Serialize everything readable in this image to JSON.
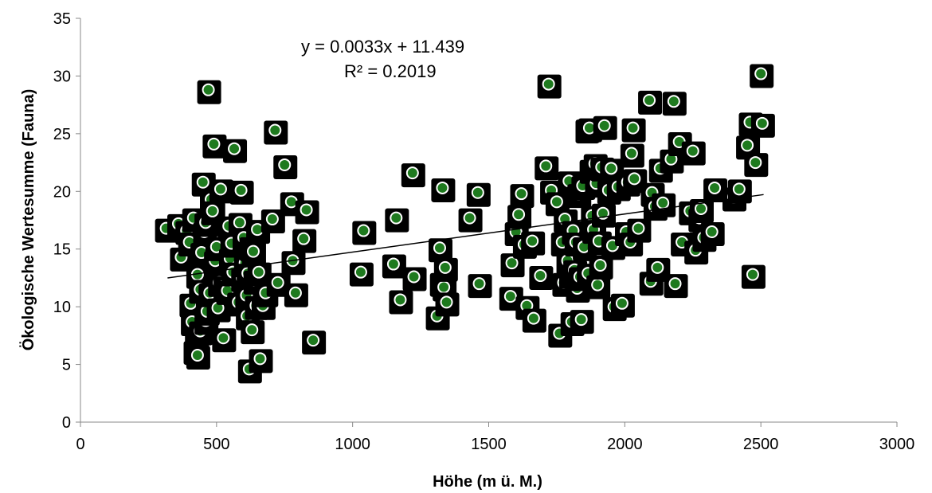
{
  "chart_data": {
    "type": "scatter",
    "title": "",
    "xlabel": "Höhe (m ü. M.)",
    "ylabel": "Ökologische Wertesumme (Fauna)",
    "xlim": [
      0,
      3000
    ],
    "ylim": [
      0,
      35
    ],
    "xticks": [
      0,
      500,
      1000,
      1500,
      2000,
      2500,
      3000
    ],
    "yticks": [
      0,
      5,
      10,
      15,
      20,
      25,
      30,
      35
    ],
    "grid": false,
    "legend": "none",
    "marker": {
      "shape": "circle",
      "fill": "#1e7a1e",
      "edge": "#ffffff",
      "shadow": "#000000"
    },
    "trendline": {
      "type": "linear",
      "slope": 0.0033,
      "intercept": 11.439,
      "x_range": [
        320,
        2510
      ],
      "equation": "y = 0.0033x + 11.439",
      "r_squared": "R² = 0.2019"
    },
    "points": [
      [
        315,
        16.8
      ],
      [
        360,
        17.2
      ],
      [
        370,
        14.3
      ],
      [
        390,
        16.6
      ],
      [
        400,
        15.6
      ],
      [
        405,
        10.3
      ],
      [
        410,
        8.7
      ],
      [
        415,
        17.7
      ],
      [
        420,
        6.2
      ],
      [
        425,
        7.3
      ],
      [
        430,
        12.8
      ],
      [
        430,
        5.8
      ],
      [
        440,
        7.9
      ],
      [
        440,
        11.5
      ],
      [
        445,
        14.7
      ],
      [
        450,
        20.8
      ],
      [
        455,
        16.5
      ],
      [
        460,
        8.8
      ],
      [
        460,
        17.3
      ],
      [
        465,
        9.6
      ],
      [
        470,
        28.8
      ],
      [
        475,
        11.2
      ],
      [
        480,
        19.3
      ],
      [
        485,
        18.3
      ],
      [
        490,
        24.1
      ],
      [
        495,
        14.0
      ],
      [
        500,
        15.2
      ],
      [
        505,
        9.9
      ],
      [
        510,
        12.1
      ],
      [
        515,
        20.2
      ],
      [
        525,
        7.3
      ],
      [
        530,
        11.8
      ],
      [
        540,
        11.4
      ],
      [
        545,
        17.0
      ],
      [
        550,
        14.2
      ],
      [
        555,
        15.5
      ],
      [
        560,
        13.0
      ],
      [
        565,
        23.7
      ],
      [
        580,
        10.4
      ],
      [
        585,
        17.3
      ],
      [
        590,
        20.1
      ],
      [
        595,
        12.5
      ],
      [
        600,
        16.0
      ],
      [
        605,
        13.8
      ],
      [
        610,
        11.0
      ],
      [
        612,
        9.2
      ],
      [
        615,
        12.9
      ],
      [
        620,
        4.6
      ],
      [
        625,
        15.2
      ],
      [
        630,
        8.0
      ],
      [
        635,
        14.8
      ],
      [
        640,
        12.3
      ],
      [
        645,
        10.1
      ],
      [
        650,
        16.7
      ],
      [
        655,
        13.0
      ],
      [
        660,
        5.5
      ],
      [
        670,
        10.1
      ],
      [
        680,
        11.2
      ],
      [
        705,
        17.6
      ],
      [
        715,
        25.3
      ],
      [
        725,
        12.1
      ],
      [
        750,
        22.3
      ],
      [
        775,
        19.1
      ],
      [
        780,
        14.0
      ],
      [
        790,
        11.2
      ],
      [
        820,
        15.9
      ],
      [
        830,
        18.4
      ],
      [
        855,
        7.1
      ],
      [
        1030,
        13.0
      ],
      [
        1040,
        16.6
      ],
      [
        1150,
        13.7
      ],
      [
        1160,
        17.7
      ],
      [
        1175,
        10.6
      ],
      [
        1220,
        21.6
      ],
      [
        1225,
        12.6
      ],
      [
        1310,
        9.2
      ],
      [
        1320,
        15.1
      ],
      [
        1325,
        12.1
      ],
      [
        1330,
        20.3
      ],
      [
        1335,
        11.7
      ],
      [
        1340,
        13.4
      ],
      [
        1345,
        10.4
      ],
      [
        1430,
        17.7
      ],
      [
        1460,
        19.9
      ],
      [
        1465,
        12.0
      ],
      [
        1580,
        10.9
      ],
      [
        1585,
        13.8
      ],
      [
        1600,
        16.5
      ],
      [
        1610,
        18.0
      ],
      [
        1620,
        19.8
      ],
      [
        1630,
        15.4
      ],
      [
        1640,
        10.1
      ],
      [
        1660,
        15.7
      ],
      [
        1665,
        9.0
      ],
      [
        1690,
        12.7
      ],
      [
        1710,
        22.2
      ],
      [
        1720,
        29.3
      ],
      [
        1730,
        20.1
      ],
      [
        1750,
        19.1
      ],
      [
        1760,
        7.7
      ],
      [
        1770,
        15.6
      ],
      [
        1775,
        12.1
      ],
      [
        1780,
        17.6
      ],
      [
        1790,
        14.0
      ],
      [
        1795,
        20.9
      ],
      [
        1800,
        12.8
      ],
      [
        1805,
        8.7
      ],
      [
        1810,
        16.6
      ],
      [
        1815,
        13.2
      ],
      [
        1820,
        15.6
      ],
      [
        1825,
        11.6
      ],
      [
        1830,
        19.8
      ],
      [
        1835,
        12.6
      ],
      [
        1840,
        8.9
      ],
      [
        1845,
        20.5
      ],
      [
        1850,
        15.2
      ],
      [
        1860,
        25.4
      ],
      [
        1865,
        12.9
      ],
      [
        1870,
        25.5
      ],
      [
        1875,
        21.9
      ],
      [
        1880,
        17.9
      ],
      [
        1885,
        16.7
      ],
      [
        1890,
        22.4
      ],
      [
        1895,
        20.7
      ],
      [
        1900,
        11.9
      ],
      [
        1905,
        15.7
      ],
      [
        1910,
        13.6
      ],
      [
        1915,
        22.1
      ],
      [
        1920,
        18.1
      ],
      [
        1925,
        25.7
      ],
      [
        1940,
        20.1
      ],
      [
        1950,
        22.0
      ],
      [
        1955,
        15.3
      ],
      [
        1960,
        10.0
      ],
      [
        1975,
        20.4
      ],
      [
        1990,
        10.3
      ],
      [
        2005,
        16.5
      ],
      [
        2010,
        20.8
      ],
      [
        2020,
        15.6
      ],
      [
        2025,
        23.3
      ],
      [
        2030,
        25.5
      ],
      [
        2035,
        21.1
      ],
      [
        2050,
        16.8
      ],
      [
        2090,
        27.9
      ],
      [
        2095,
        12.2
      ],
      [
        2100,
        19.9
      ],
      [
        2110,
        18.7
      ],
      [
        2120,
        13.4
      ],
      [
        2130,
        22.0
      ],
      [
        2140,
        19.0
      ],
      [
        2170,
        22.8
      ],
      [
        2180,
        27.8
      ],
      [
        2185,
        12.0
      ],
      [
        2200,
        24.3
      ],
      [
        2210,
        15.6
      ],
      [
        2240,
        18.3
      ],
      [
        2250,
        23.5
      ],
      [
        2260,
        14.9
      ],
      [
        2275,
        17.7
      ],
      [
        2280,
        18.5
      ],
      [
        2290,
        16.0
      ],
      [
        2320,
        16.5
      ],
      [
        2330,
        20.3
      ],
      [
        2400,
        19.5
      ],
      [
        2420,
        20.2
      ],
      [
        2450,
        24.0
      ],
      [
        2460,
        26.0
      ],
      [
        2470,
        12.8
      ],
      [
        2480,
        22.5
      ],
      [
        2500,
        30.2
      ],
      [
        2505,
        25.9
      ]
    ]
  }
}
